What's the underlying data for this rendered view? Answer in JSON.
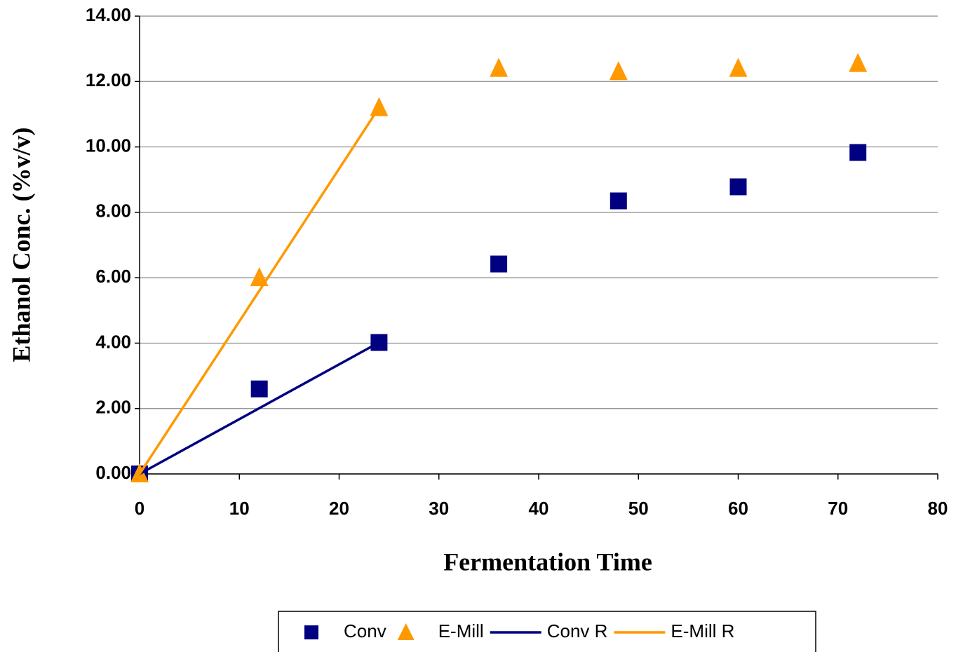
{
  "chart_data": {
    "type": "scatter",
    "x_label": "Fermentation Time",
    "y_label": "Ethanol Conc. (%v/v)",
    "series": [
      {
        "name": "Conv",
        "color": "#000080",
        "marker": "square",
        "x": [
          0,
          12,
          24,
          36,
          48,
          60,
          72
        ],
        "values": [
          0,
          2.6,
          4.02,
          6.42,
          8.35,
          8.78,
          9.83
        ]
      },
      {
        "name": "E-Mill",
        "color": "#ff9900",
        "marker": "triangle",
        "x": [
          0,
          12,
          24,
          36,
          48,
          60,
          72
        ],
        "values": [
          0,
          6.0,
          11.2,
          12.4,
          12.3,
          12.4,
          12.55
        ]
      },
      {
        "name": "Conv R",
        "color": "#000080",
        "line": true,
        "x": [
          0,
          24
        ],
        "values": [
          0,
          4.02
        ]
      },
      {
        "name": "E-Mill R",
        "color": "#ff9900",
        "line": true,
        "x": [
          0,
          24
        ],
        "values": [
          0,
          11.2
        ]
      }
    ],
    "xlim": [
      0,
      80
    ],
    "xticks": [
      0,
      10,
      20,
      30,
      40,
      50,
      60,
      70,
      80
    ],
    "ylim": [
      0,
      14
    ],
    "yticks": [
      {
        "value": 0,
        "label": "0.00"
      },
      {
        "value": 2,
        "label": "2.00"
      },
      {
        "value": 4,
        "label": "4.00"
      },
      {
        "value": 6,
        "label": "6.00"
      },
      {
        "value": 8,
        "label": "8.00"
      },
      {
        "value": 10,
        "label": "10.00"
      },
      {
        "value": 12,
        "label": "12.00"
      },
      {
        "value": 14,
        "label": "14.00"
      }
    ],
    "grid": true,
    "legend": "bottom"
  }
}
